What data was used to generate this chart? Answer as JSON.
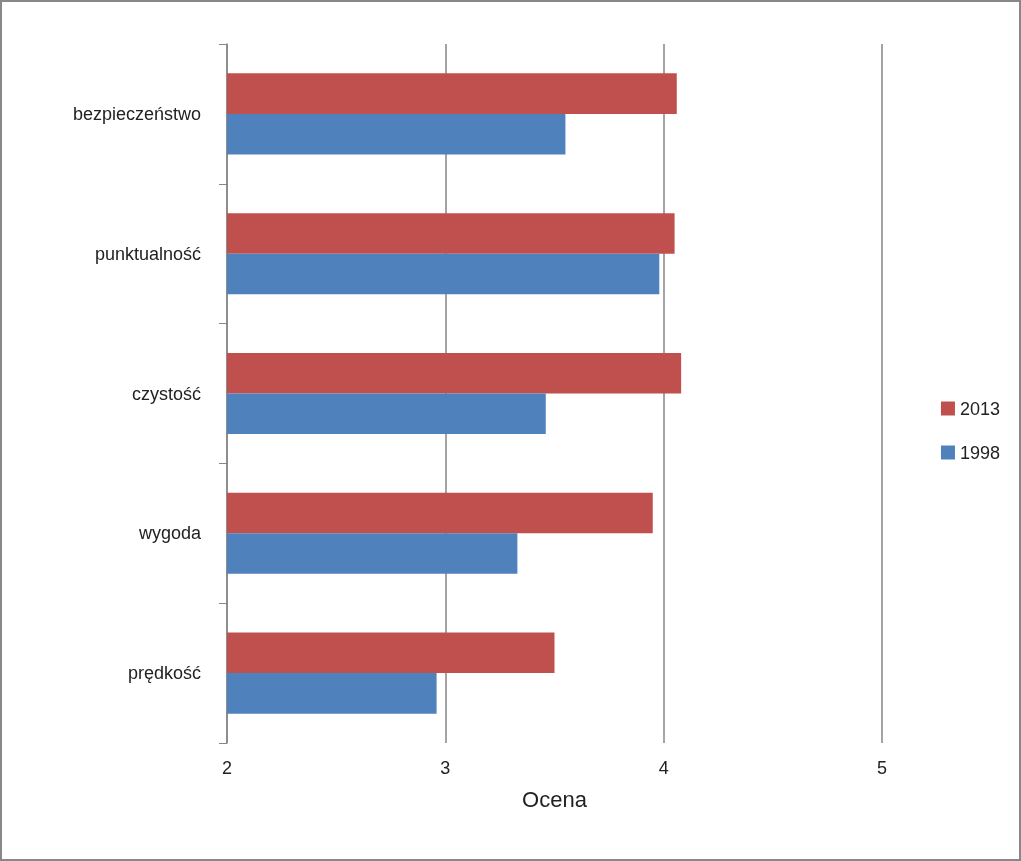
{
  "chart_data": {
    "type": "bar",
    "orientation": "horizontal",
    "xlabel": "Ocena",
    "categories": [
      "bezpieczeństwo",
      "punktualność",
      "czystość",
      "wygoda",
      "prędkość"
    ],
    "series": [
      {
        "name": "2013",
        "color": "#c0504d",
        "values": [
          4.06,
          4.05,
          4.08,
          3.95,
          3.5
        ]
      },
      {
        "name": "1998",
        "color": "#4f81bd",
        "values": [
          3.55,
          3.98,
          3.46,
          3.33,
          2.96
        ]
      }
    ],
    "xlim": [
      2,
      5
    ],
    "xticks": [
      2,
      3,
      4,
      5
    ],
    "grid": "x",
    "legend": "right"
  }
}
